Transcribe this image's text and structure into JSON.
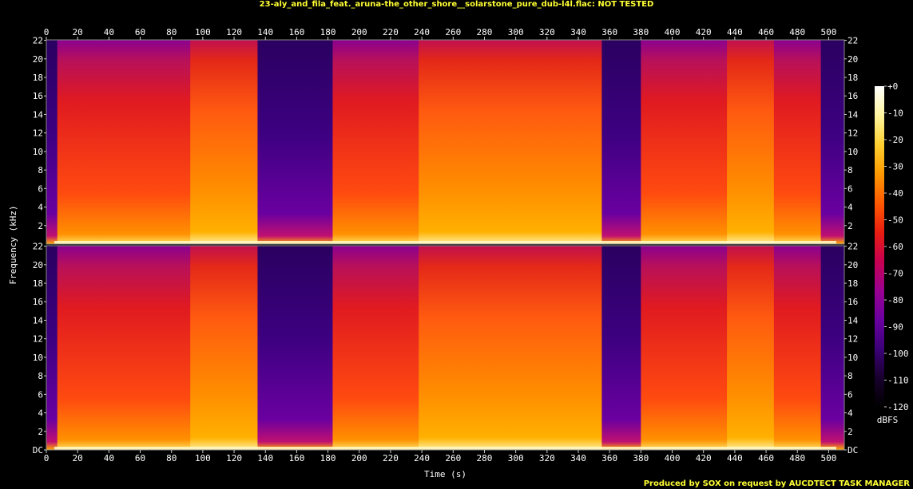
{
  "title": "23-aly_and_fila_feat._aruna-the_other_shore__solarstone_pure_dub-l4l.flac: NOT TESTED",
  "credit": "Produced by SOX on request by AUCDTECT TASK MANAGER",
  "chart_data": {
    "type": "heatmap",
    "title": "23-aly_and_fila_feat._aruna-the_other_shore__solarstone_pure_dub-l4l.flac: NOT TESTED",
    "xlabel": "Time (s)",
    "ylabel": "Frequency (kHz)",
    "xlim": [
      0,
      510
    ],
    "ylim": [
      0,
      22.05
    ],
    "x_ticks": [
      "0",
      "20",
      "40",
      "60",
      "80",
      "100",
      "120",
      "140",
      "160",
      "180",
      "200",
      "220",
      "240",
      "260",
      "280",
      "300",
      "320",
      "340",
      "360",
      "380",
      "400",
      "420",
      "440",
      "460",
      "480",
      "500"
    ],
    "y_ticks": [
      "DC",
      "2",
      "4",
      "6",
      "8",
      "10",
      "12",
      "14",
      "16",
      "18",
      "20",
      "22"
    ],
    "channels": 2,
    "colorbar": {
      "label": "dBFS",
      "ticks": [
        "+0",
        "-10",
        "-20",
        "-30",
        "-40",
        "-50",
        "-60",
        "-70",
        "-80",
        "-90",
        "-100",
        "-110",
        "-120"
      ],
      "range": [
        -120,
        0
      ],
      "colors": [
        "#000000",
        "#18002e",
        "#3c0078",
        "#6a00a0",
        "#9a0090",
        "#c80050",
        "#ea1e10",
        "#ff5a00",
        "#ff9a00",
        "#ffd030",
        "#fff5a0",
        "#ffffff"
      ]
    },
    "segments": [
      {
        "t": [
          0,
          7
        ],
        "level": "quiet"
      },
      {
        "t": [
          7,
          92
        ],
        "level": "loud"
      },
      {
        "t": [
          92,
          135
        ],
        "level": "very-loud"
      },
      {
        "t": [
          135,
          183
        ],
        "level": "quiet"
      },
      {
        "t": [
          183,
          238
        ],
        "level": "loud"
      },
      {
        "t": [
          238,
          294
        ],
        "level": "very-loud"
      },
      {
        "t": [
          294,
          355
        ],
        "level": "very-loud"
      },
      {
        "t": [
          355,
          380
        ],
        "level": "quiet"
      },
      {
        "t": [
          380,
          435
        ],
        "level": "loud"
      },
      {
        "t": [
          435,
          465
        ],
        "level": "very-loud"
      },
      {
        "t": [
          465,
          495
        ],
        "level": "loud"
      },
      {
        "t": [
          495,
          510
        ],
        "level": "quiet"
      }
    ]
  }
}
